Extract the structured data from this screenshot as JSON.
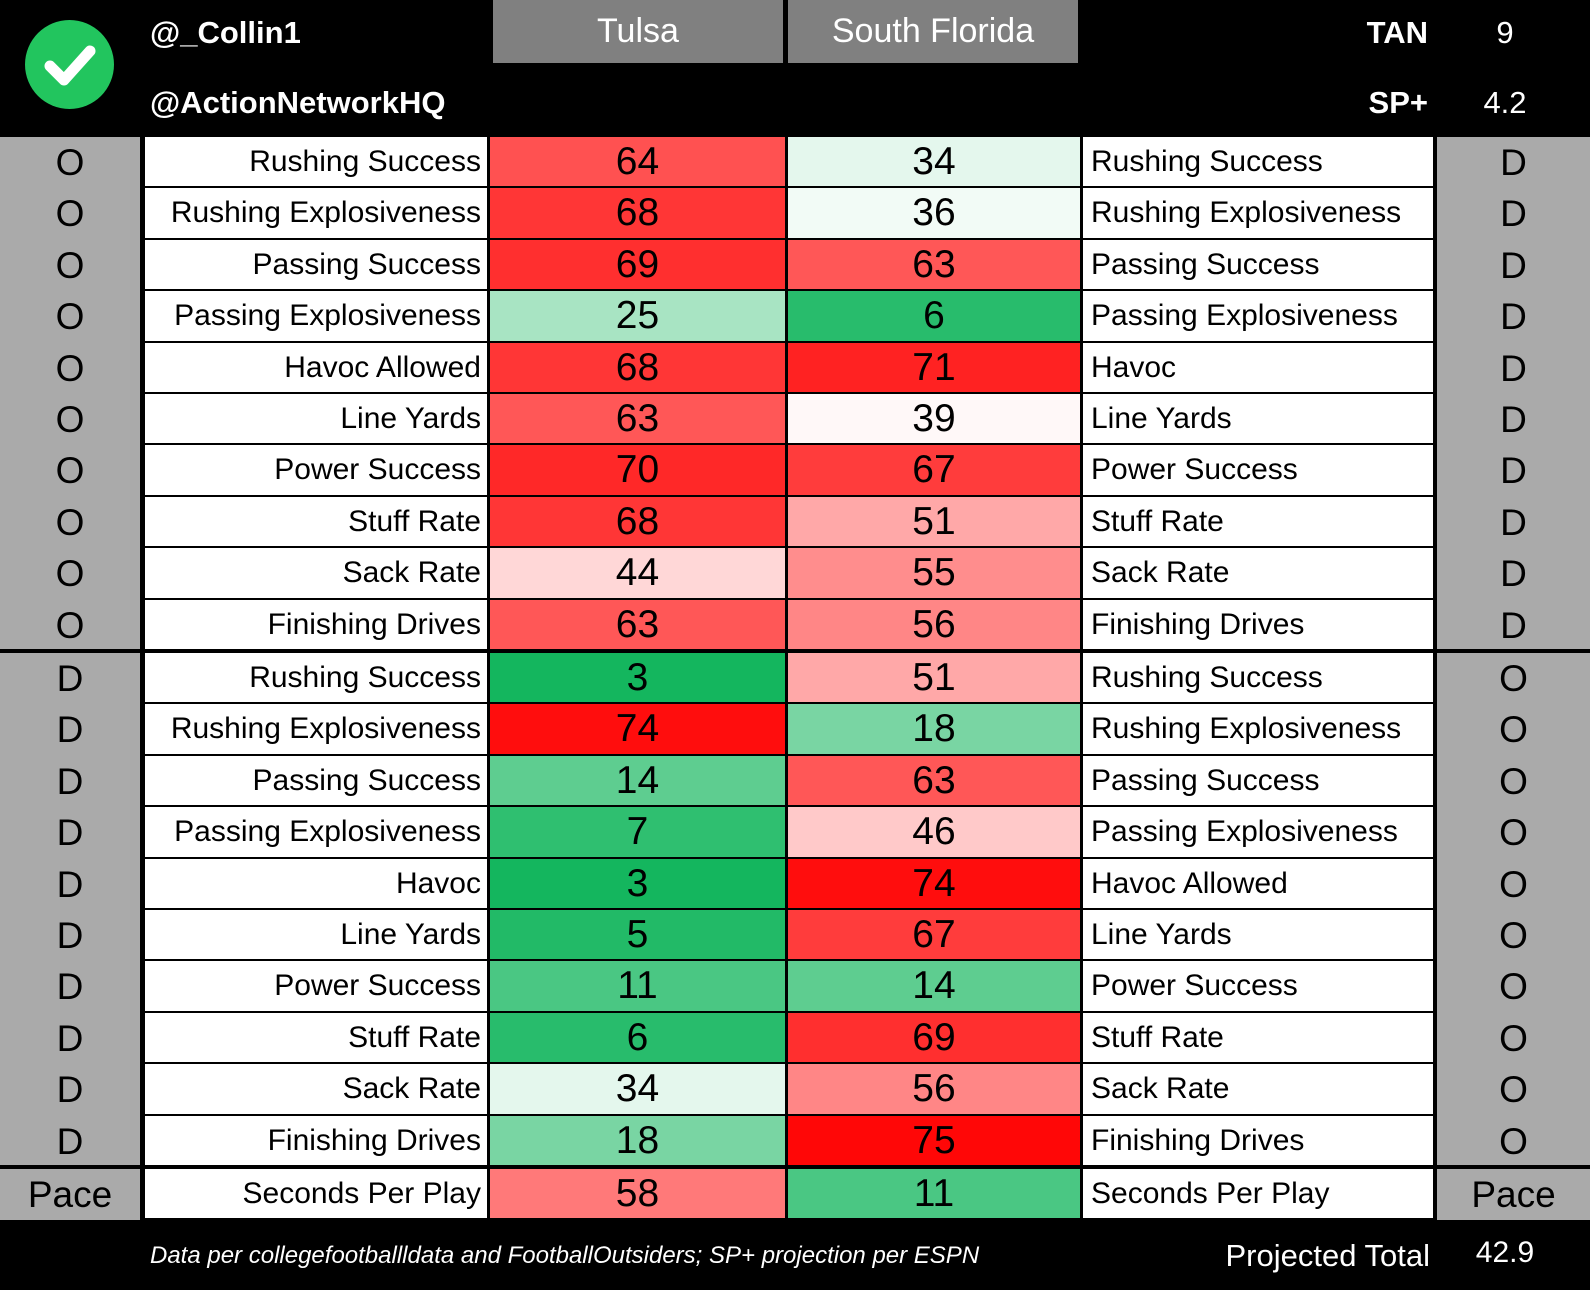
{
  "header": {
    "handle_primary": "@_Collin1",
    "handle_secondary": "@ActionNetworkHQ",
    "check_icon_color": "#22c55e",
    "team_left": "Tulsa",
    "team_right": "South Florida",
    "tan_label": "TAN",
    "tan_value": "9",
    "sp_label": "SP+",
    "sp_value": "4.2"
  },
  "chart_data": {
    "type": "table",
    "columns": [
      "Tulsa",
      "South Florida"
    ],
    "color_scale": {
      "low": "#00b050",
      "mid": "#ffffff",
      "high": "#ff0000"
    },
    "sections": [
      {
        "left_side": "O",
        "right_side": "D",
        "rows": [
          {
            "left_label": "Rushing Success",
            "left_value": 64,
            "right_value": 34,
            "right_label": "Rushing Success"
          },
          {
            "left_label": "Rushing Explosiveness",
            "left_value": 68,
            "right_value": 36,
            "right_label": "Rushing Explosiveness"
          },
          {
            "left_label": "Passing Success",
            "left_value": 69,
            "right_value": 63,
            "right_label": "Passing Success"
          },
          {
            "left_label": "Passing Explosiveness",
            "left_value": 25,
            "right_value": 6,
            "right_label": "Passing Explosiveness"
          },
          {
            "left_label": "Havoc Allowed",
            "left_value": 68,
            "right_value": 71,
            "right_label": "Havoc"
          },
          {
            "left_label": "Line Yards",
            "left_value": 63,
            "right_value": 39,
            "right_label": "Line Yards"
          },
          {
            "left_label": "Power Success",
            "left_value": 70,
            "right_value": 67,
            "right_label": "Power Success"
          },
          {
            "left_label": "Stuff Rate",
            "left_value": 68,
            "right_value": 51,
            "right_label": "Stuff Rate"
          },
          {
            "left_label": "Sack Rate",
            "left_value": 44,
            "right_value": 55,
            "right_label": "Sack Rate"
          },
          {
            "left_label": "Finishing Drives",
            "left_value": 63,
            "right_value": 56,
            "right_label": "Finishing Drives"
          }
        ]
      },
      {
        "left_side": "D",
        "right_side": "O",
        "rows": [
          {
            "left_label": "Rushing Success",
            "left_value": 3,
            "right_value": 51,
            "right_label": "Rushing Success"
          },
          {
            "left_label": "Rushing Explosiveness",
            "left_value": 74,
            "right_value": 18,
            "right_label": "Rushing Explosiveness"
          },
          {
            "left_label": "Passing Success",
            "left_value": 14,
            "right_value": 63,
            "right_label": "Passing Success"
          },
          {
            "left_label": "Passing Explosiveness",
            "left_value": 7,
            "right_value": 46,
            "right_label": "Passing Explosiveness"
          },
          {
            "left_label": "Havoc",
            "left_value": 3,
            "right_value": 74,
            "right_label": "Havoc Allowed"
          },
          {
            "left_label": "Line Yards",
            "left_value": 5,
            "right_value": 67,
            "right_label": "Line Yards"
          },
          {
            "left_label": "Power Success",
            "left_value": 11,
            "right_value": 14,
            "right_label": "Power Success"
          },
          {
            "left_label": "Stuff Rate",
            "left_value": 6,
            "right_value": 69,
            "right_label": "Stuff Rate"
          },
          {
            "left_label": "Sack Rate",
            "left_value": 34,
            "right_value": 56,
            "right_label": "Sack Rate"
          },
          {
            "left_label": "Finishing Drives",
            "left_value": 18,
            "right_value": 75,
            "right_label": "Finishing Drives"
          }
        ]
      },
      {
        "left_side": "Pace",
        "right_side": "Pace",
        "rows": [
          {
            "left_label": "Seconds Per Play",
            "left_value": 58,
            "right_value": 11,
            "right_label": "Seconds Per Play"
          }
        ]
      }
    ]
  },
  "footer": {
    "source": "Data per collegefootballldata and FootballOutsiders; SP+ projection per ESPN",
    "projected_label": "Projected Total",
    "projected_value": "42.9"
  }
}
